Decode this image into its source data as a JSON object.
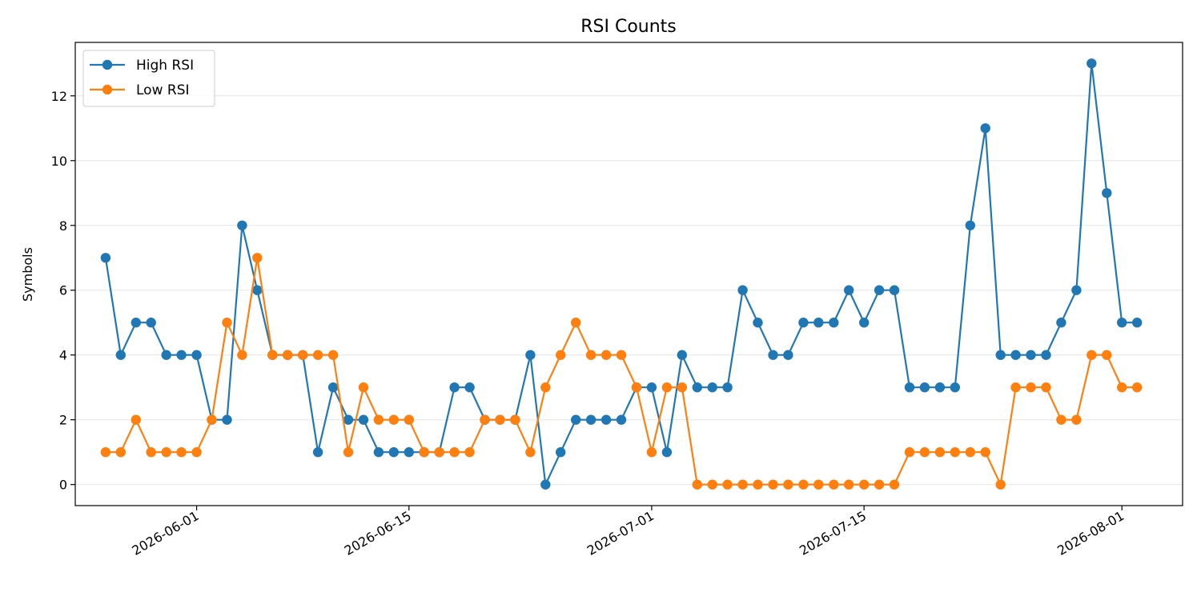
{
  "chart_data": {
    "type": "line",
    "title": "RSI Counts",
    "xlabel": "",
    "ylabel": "Symbols",
    "xlim": [
      "2026-05-24",
      "2026-08-05"
    ],
    "ylim": [
      -0.65,
      13.65
    ],
    "yticks": [
      0,
      2,
      4,
      6,
      8,
      10,
      12
    ],
    "xticks": [
      "2026-06-01",
      "2026-06-15",
      "2026-07-01",
      "2026-07-15",
      "2026-08-01"
    ],
    "grid": "y",
    "legend": "top-left",
    "x": [
      "2026-05-26",
      "2026-05-27",
      "2026-05-28",
      "2026-05-29",
      "2026-05-30",
      "2026-05-31",
      "2026-06-01",
      "2026-06-02",
      "2026-06-03",
      "2026-06-04",
      "2026-06-05",
      "2026-06-06",
      "2026-06-07",
      "2026-06-08",
      "2026-06-09",
      "2026-06-10",
      "2026-06-11",
      "2026-06-12",
      "2026-06-13",
      "2026-06-14",
      "2026-06-15",
      "2026-06-16",
      "2026-06-17",
      "2026-06-18",
      "2026-06-19",
      "2026-06-20",
      "2026-06-21",
      "2026-06-22",
      "2026-06-23",
      "2026-06-24",
      "2026-06-25",
      "2026-06-26",
      "2026-06-27",
      "2026-06-28",
      "2026-06-29",
      "2026-06-30",
      "2026-07-01",
      "2026-07-02",
      "2026-07-03",
      "2026-07-04",
      "2026-07-05",
      "2026-07-06",
      "2026-07-07",
      "2026-07-08",
      "2026-07-09",
      "2026-07-10",
      "2026-07-11",
      "2026-07-12",
      "2026-07-13",
      "2026-07-14",
      "2026-07-15",
      "2026-07-16",
      "2026-07-17",
      "2026-07-18",
      "2026-07-19",
      "2026-07-20",
      "2026-07-21",
      "2026-07-22",
      "2026-07-23",
      "2026-07-24",
      "2026-07-25",
      "2026-07-26",
      "2026-07-27",
      "2026-07-28",
      "2026-07-29",
      "2026-07-30",
      "2026-07-31",
      "2026-08-01",
      "2026-08-02"
    ],
    "series": [
      {
        "name": "High RSI",
        "color": "#1f77b4",
        "values": [
          7,
          4,
          5,
          5,
          4,
          4,
          4,
          2,
          2,
          8,
          6,
          4,
          4,
          4,
          1,
          3,
          2,
          2,
          1,
          1,
          1,
          1,
          1,
          3,
          3,
          2,
          2,
          2,
          4,
          0,
          1,
          2,
          2,
          2,
          2,
          3,
          3,
          1,
          4,
          3,
          3,
          3,
          6,
          5,
          4,
          4,
          5,
          5,
          5,
          6,
          5,
          6,
          6,
          3,
          3,
          3,
          3,
          8,
          11,
          4,
          4,
          4,
          4,
          5,
          6,
          13,
          9,
          5,
          5
        ]
      },
      {
        "name": "Low RSI",
        "color": "#ff7f0e",
        "values": [
          1,
          1,
          2,
          1,
          1,
          1,
          1,
          2,
          5,
          4,
          7,
          4,
          4,
          4,
          4,
          4,
          1,
          3,
          2,
          2,
          2,
          1,
          1,
          1,
          1,
          2,
          2,
          2,
          1,
          3,
          4,
          5,
          4,
          4,
          4,
          3,
          1,
          3,
          3,
          0,
          0,
          0,
          0,
          0,
          0,
          0,
          0,
          0,
          0,
          0,
          0,
          0,
          0,
          1,
          1,
          1,
          1,
          1,
          1,
          0,
          3,
          3,
          3,
          2,
          2,
          4,
          4,
          3,
          3
        ]
      }
    ]
  }
}
